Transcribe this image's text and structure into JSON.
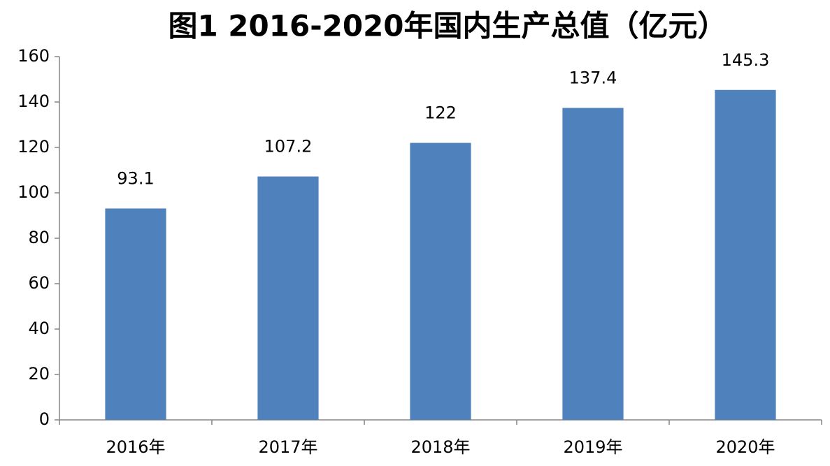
{
  "chart_data": {
    "type": "bar",
    "title": "图1  2016-2020年国内生产总值（亿元）",
    "categories": [
      "2016年",
      "2017年",
      "2018年",
      "2019年",
      "2020年"
    ],
    "values": [
      93.1,
      107.2,
      122,
      137.4,
      145.3
    ],
    "color": "#4f81bd",
    "ylim": [
      0,
      160
    ],
    "yticks": [
      0,
      20,
      40,
      60,
      80,
      100,
      120,
      140,
      160
    ],
    "grid": false
  }
}
